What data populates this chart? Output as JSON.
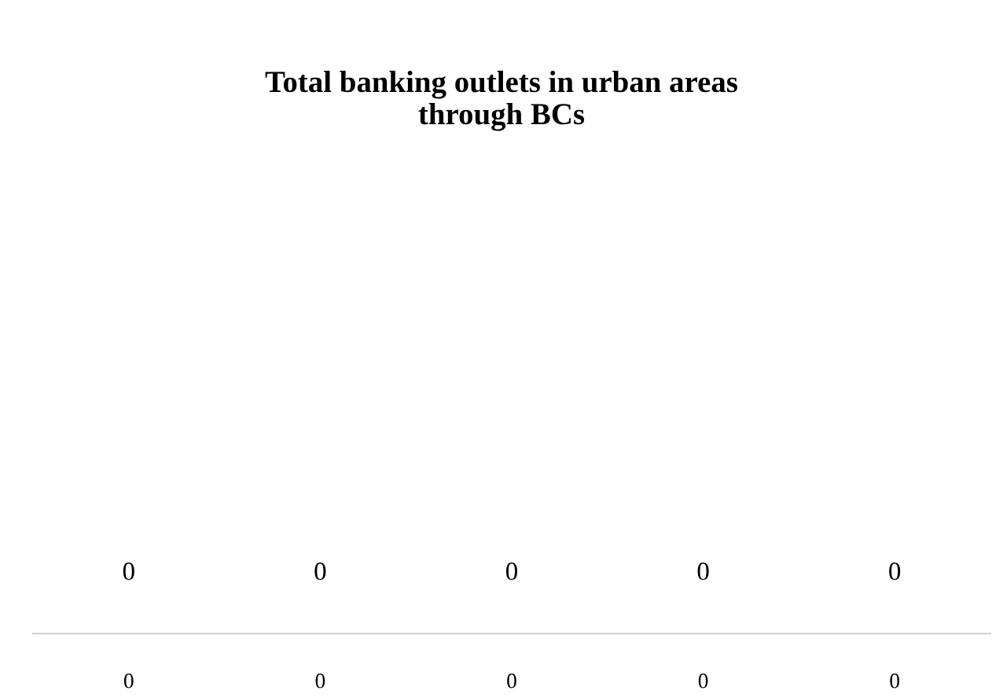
{
  "chart_data": {
    "type": "other",
    "title": "Total banking outlets in urban areas\nthrough BCs",
    "categories": [
      "0",
      "0",
      "0",
      "0",
      "0"
    ],
    "values": [
      0,
      0,
      0,
      0,
      0
    ],
    "data_labels": true
  }
}
